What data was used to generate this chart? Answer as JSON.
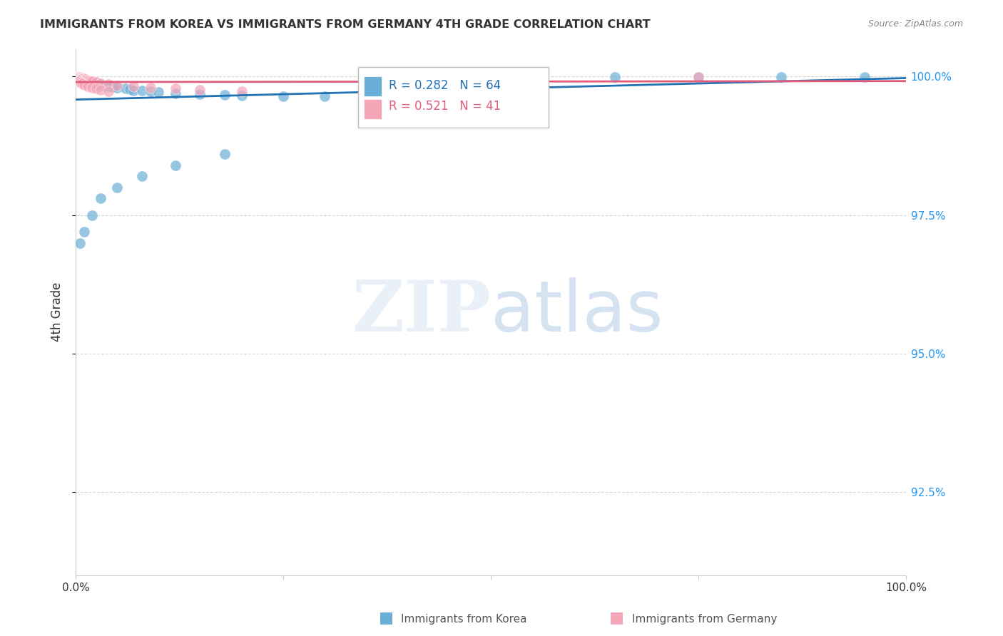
{
  "title": "IMMIGRANTS FROM KOREA VS IMMIGRANTS FROM GERMANY 4TH GRADE CORRELATION CHART",
  "source": "Source: ZipAtlas.com",
  "ylabel": "4th Grade",
  "xlim": [
    0,
    1.0
  ],
  "ylim": [
    0.91,
    1.005
  ],
  "yticks": [
    0.925,
    0.95,
    0.975,
    1.0
  ],
  "ytick_labels": [
    "92.5%",
    "95.0%",
    "97.5%",
    "100.0%"
  ],
  "blue_color": "#6baed6",
  "pink_color": "#f4a6b8",
  "blue_line_color": "#2171b5",
  "pink_line_color": "#e05c7a",
  "korea_R": 0.282,
  "korea_N": 64,
  "germany_R": 0.521,
  "germany_N": 41,
  "korea_x": [
    0.001,
    0.002,
    0.002,
    0.003,
    0.003,
    0.003,
    0.004,
    0.004,
    0.005,
    0.005,
    0.005,
    0.006,
    0.006,
    0.007,
    0.007,
    0.008,
    0.009,
    0.009,
    0.01,
    0.01,
    0.011,
    0.012,
    0.013,
    0.014,
    0.015,
    0.016,
    0.017,
    0.018,
    0.02,
    0.022,
    0.025,
    0.028,
    0.03,
    0.035,
    0.04,
    0.045,
    0.05,
    0.06,
    0.065,
    0.07,
    0.08,
    0.09,
    0.1,
    0.12,
    0.15,
    0.18,
    0.2,
    0.25,
    0.3,
    0.35,
    0.45,
    0.55,
    0.65,
    0.75,
    0.85,
    0.95,
    0.005,
    0.01,
    0.02,
    0.03,
    0.05,
    0.08,
    0.12,
    0.18
  ],
  "korea_y": [
    0.9999,
    0.9999,
    0.9998,
    0.9999,
    0.9999,
    0.9998,
    0.9998,
    0.9999,
    0.9999,
    0.9998,
    0.9997,
    0.9997,
    0.9996,
    0.9998,
    0.9997,
    0.9996,
    0.9997,
    0.9996,
    0.9995,
    0.9994,
    0.9993,
    0.9993,
    0.9992,
    0.9991,
    0.9992,
    0.9991,
    0.999,
    0.9989,
    0.999,
    0.9989,
    0.9988,
    0.9986,
    0.9985,
    0.9983,
    0.9982,
    0.9981,
    0.998,
    0.9978,
    0.9977,
    0.9975,
    0.9975,
    0.9973,
    0.9972,
    0.997,
    0.9968,
    0.9967,
    0.9966,
    0.9965,
    0.9964,
    0.9963,
    0.9999,
    0.9999,
    0.9999,
    0.9999,
    0.9999,
    0.9999,
    0.97,
    0.972,
    0.975,
    0.978,
    0.98,
    0.982,
    0.984,
    0.986
  ],
  "germany_x": [
    0.001,
    0.002,
    0.002,
    0.003,
    0.003,
    0.004,
    0.004,
    0.005,
    0.006,
    0.006,
    0.007,
    0.008,
    0.009,
    0.01,
    0.011,
    0.012,
    0.013,
    0.015,
    0.016,
    0.018,
    0.02,
    0.025,
    0.03,
    0.04,
    0.05,
    0.07,
    0.09,
    0.12,
    0.15,
    0.2,
    0.55,
    0.75,
    0.004,
    0.006,
    0.008,
    0.01,
    0.015,
    0.02,
    0.025,
    0.03,
    0.04
  ],
  "germany_y": [
    0.9999,
    0.9999,
    0.9998,
    0.9999,
    0.9998,
    0.9999,
    0.9998,
    0.9998,
    0.9998,
    0.9997,
    0.9997,
    0.9997,
    0.9996,
    0.9996,
    0.9995,
    0.9995,
    0.9994,
    0.9993,
    0.9993,
    0.9992,
    0.9991,
    0.999,
    0.9988,
    0.9986,
    0.9984,
    0.9982,
    0.998,
    0.9978,
    0.9976,
    0.9974,
    0.9999,
    0.9999,
    0.9992,
    0.9989,
    0.9987,
    0.9985,
    0.9982,
    0.998,
    0.9978,
    0.9976,
    0.9974
  ],
  "background_color": "#ffffff",
  "grid_color": "#cccccc"
}
